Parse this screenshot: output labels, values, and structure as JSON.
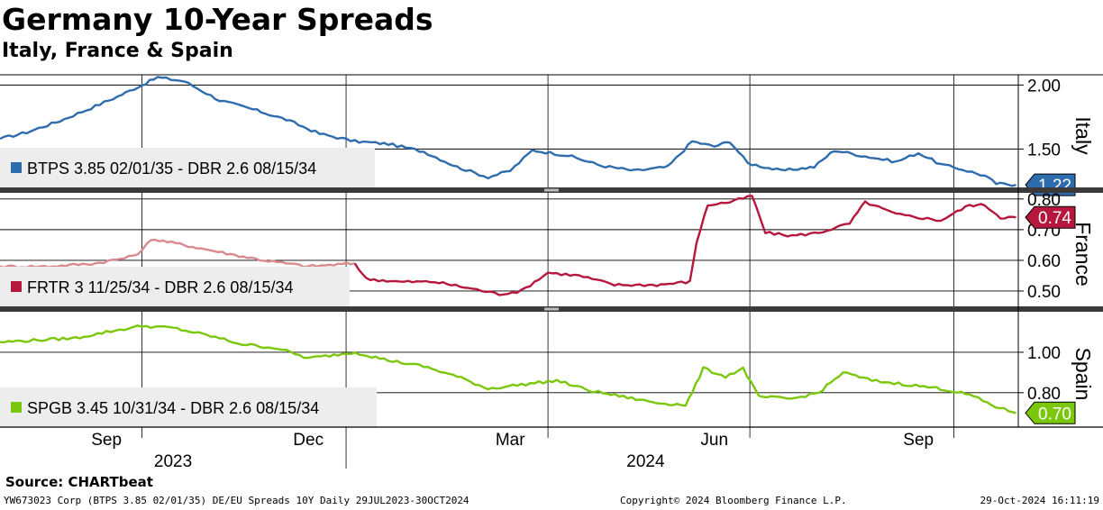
{
  "header": {
    "title": "Germany 10-Year Spreads",
    "subtitle": "Italy, France & Spain"
  },
  "chart_data": {
    "type": "line",
    "x_range": [
      "2023-07-29",
      "2024-10-30"
    ],
    "x_ticks": [
      {
        "date": "2023-09-15",
        "label": "Sep"
      },
      {
        "date": "2023-12-15",
        "label": "Dec"
      },
      {
        "date": "2024-03-15",
        "label": "Mar"
      },
      {
        "date": "2024-06-15",
        "label": "Jun"
      },
      {
        "date": "2024-09-15",
        "label": "Sep"
      }
    ],
    "month_gridlines": [
      "2023-10-01",
      "2024-01-01",
      "2024-04-01",
      "2024-07-01",
      "2024-10-01"
    ],
    "year_labels": [
      {
        "date": "2023-10-15",
        "label": "2023"
      },
      {
        "date": "2024-05-15",
        "label": "2024"
      }
    ],
    "panels": [
      {
        "name": "Italy",
        "legend": "BTPS 3.85 02/01/35 - DBR 2.6 08/15/34",
        "color": "#2e6cad",
        "ylim": [
          1.2,
          2.08
        ],
        "yticks": [
          1.5,
          2.0
        ],
        "ytick_labels": [
          "1.50",
          "2.00"
        ],
        "last_value": 1.22,
        "last_label": "1.22",
        "series": [
          [
            "2023-07-29",
            1.58
          ],
          [
            "2023-08-10",
            1.63
          ],
          [
            "2023-08-25",
            1.72
          ],
          [
            "2023-09-08",
            1.82
          ],
          [
            "2023-09-20",
            1.91
          ],
          [
            "2023-10-01",
            2.0
          ],
          [
            "2023-10-08",
            2.06
          ],
          [
            "2023-10-20",
            2.03
          ],
          [
            "2023-11-05",
            1.88
          ],
          [
            "2023-11-20",
            1.81
          ],
          [
            "2023-12-05",
            1.73
          ],
          [
            "2023-12-20",
            1.62
          ],
          [
            "2024-01-05",
            1.56
          ],
          [
            "2024-01-20",
            1.54
          ],
          [
            "2024-02-05",
            1.48
          ],
          [
            "2024-02-20",
            1.36
          ],
          [
            "2024-03-05",
            1.28
          ],
          [
            "2024-03-15",
            1.33
          ],
          [
            "2024-03-25",
            1.49
          ],
          [
            "2024-04-10",
            1.45
          ],
          [
            "2024-04-25",
            1.37
          ],
          [
            "2024-05-10",
            1.33
          ],
          [
            "2024-05-25",
            1.36
          ],
          [
            "2024-06-05",
            1.56
          ],
          [
            "2024-06-15",
            1.52
          ],
          [
            "2024-06-22",
            1.56
          ],
          [
            "2024-06-30",
            1.39
          ],
          [
            "2024-07-15",
            1.33
          ],
          [
            "2024-07-30",
            1.36
          ],
          [
            "2024-08-08",
            1.49
          ],
          [
            "2024-08-20",
            1.45
          ],
          [
            "2024-09-05",
            1.4
          ],
          [
            "2024-09-15",
            1.47
          ],
          [
            "2024-09-25",
            1.38
          ],
          [
            "2024-10-05",
            1.34
          ],
          [
            "2024-10-15",
            1.29
          ],
          [
            "2024-10-20",
            1.23
          ],
          [
            "2024-10-29",
            1.22
          ]
        ]
      },
      {
        "name": "France",
        "legend": "FRTR 3 11/25/34 - DBR 2.6 08/15/34",
        "color": "#b5183c",
        "faded_color": "#d98a8f",
        "faded_until": "2024-01-05",
        "ylim": [
          0.45,
          0.82
        ],
        "yticks": [
          0.5,
          0.6,
          0.7,
          0.8
        ],
        "ytick_labels": [
          "0.50",
          "0.60",
          "0.70",
          "0.80"
        ],
        "last_value": 0.74,
        "last_label": "0.74",
        "series": [
          [
            "2023-07-29",
            0.58
          ],
          [
            "2023-08-20",
            0.58
          ],
          [
            "2023-09-10",
            0.59
          ],
          [
            "2023-09-25",
            0.61
          ],
          [
            "2023-10-01",
            0.63
          ],
          [
            "2023-10-05",
            0.67
          ],
          [
            "2023-10-20",
            0.65
          ],
          [
            "2023-11-10",
            0.62
          ],
          [
            "2023-11-25",
            0.6
          ],
          [
            "2023-12-15",
            0.58
          ],
          [
            "2024-01-05",
            0.59
          ],
          [
            "2024-01-10",
            0.54
          ],
          [
            "2024-01-25",
            0.53
          ],
          [
            "2024-02-10",
            0.53
          ],
          [
            "2024-02-25",
            0.51
          ],
          [
            "2024-03-10",
            0.49
          ],
          [
            "2024-03-20",
            0.5
          ],
          [
            "2024-04-01",
            0.56
          ],
          [
            "2024-04-15",
            0.55
          ],
          [
            "2024-05-01",
            0.52
          ],
          [
            "2024-05-20",
            0.52
          ],
          [
            "2024-06-04",
            0.53
          ],
          [
            "2024-06-07",
            0.66
          ],
          [
            "2024-06-12",
            0.78
          ],
          [
            "2024-06-22",
            0.79
          ],
          [
            "2024-07-02",
            0.81
          ],
          [
            "2024-07-08",
            0.69
          ],
          [
            "2024-07-20",
            0.68
          ],
          [
            "2024-08-01",
            0.69
          ],
          [
            "2024-08-15",
            0.72
          ],
          [
            "2024-08-22",
            0.79
          ],
          [
            "2024-09-05",
            0.75
          ],
          [
            "2024-09-25",
            0.73
          ],
          [
            "2024-10-08",
            0.78
          ],
          [
            "2024-10-15",
            0.78
          ],
          [
            "2024-10-22",
            0.74
          ],
          [
            "2024-10-29",
            0.74
          ]
        ]
      },
      {
        "name": "Spain",
        "legend": "SPGB 3.45 10/31/34 - DBR 2.6 08/15/34",
        "color": "#7ac70c",
        "ylim": [
          0.63,
          1.2
        ],
        "yticks": [
          0.8,
          1.0
        ],
        "ytick_labels": [
          "0.80",
          "1.00"
        ],
        "last_value": 0.7,
        "last_label": "0.70",
        "series": [
          [
            "2023-07-29",
            1.05
          ],
          [
            "2023-08-15",
            1.06
          ],
          [
            "2023-09-01",
            1.07
          ],
          [
            "2023-09-15",
            1.1
          ],
          [
            "2023-10-01",
            1.13
          ],
          [
            "2023-10-15",
            1.12
          ],
          [
            "2023-11-01",
            1.08
          ],
          [
            "2023-11-15",
            1.04
          ],
          [
            "2023-12-01",
            1.02
          ],
          [
            "2023-12-15",
            0.97
          ],
          [
            "2024-01-05",
            1.0
          ],
          [
            "2024-01-20",
            0.96
          ],
          [
            "2024-02-05",
            0.93
          ],
          [
            "2024-02-20",
            0.88
          ],
          [
            "2024-03-05",
            0.82
          ],
          [
            "2024-03-20",
            0.84
          ],
          [
            "2024-04-05",
            0.86
          ],
          [
            "2024-04-20",
            0.81
          ],
          [
            "2024-05-05",
            0.78
          ],
          [
            "2024-05-20",
            0.75
          ],
          [
            "2024-06-02",
            0.74
          ],
          [
            "2024-06-05",
            0.8
          ],
          [
            "2024-06-10",
            0.92
          ],
          [
            "2024-06-20",
            0.88
          ],
          [
            "2024-06-28",
            0.92
          ],
          [
            "2024-07-05",
            0.78
          ],
          [
            "2024-07-20",
            0.77
          ],
          [
            "2024-08-01",
            0.8
          ],
          [
            "2024-08-12",
            0.9
          ],
          [
            "2024-08-25",
            0.86
          ],
          [
            "2024-09-10",
            0.84
          ],
          [
            "2024-09-25",
            0.82
          ],
          [
            "2024-10-08",
            0.79
          ],
          [
            "2024-10-20",
            0.73
          ],
          [
            "2024-10-29",
            0.7
          ]
        ]
      }
    ]
  },
  "footer": {
    "source": "Source: CHARTbeat",
    "left": "YW673023 Corp (BTPS 3.85 02/01/35) DE/EU Spreads 10Y  Daily 29JUL2023-30OCT2024",
    "center": "Copyright© 2024 Bloomberg Finance L.P.",
    "right": "29-Oct-2024 16:11:19"
  }
}
